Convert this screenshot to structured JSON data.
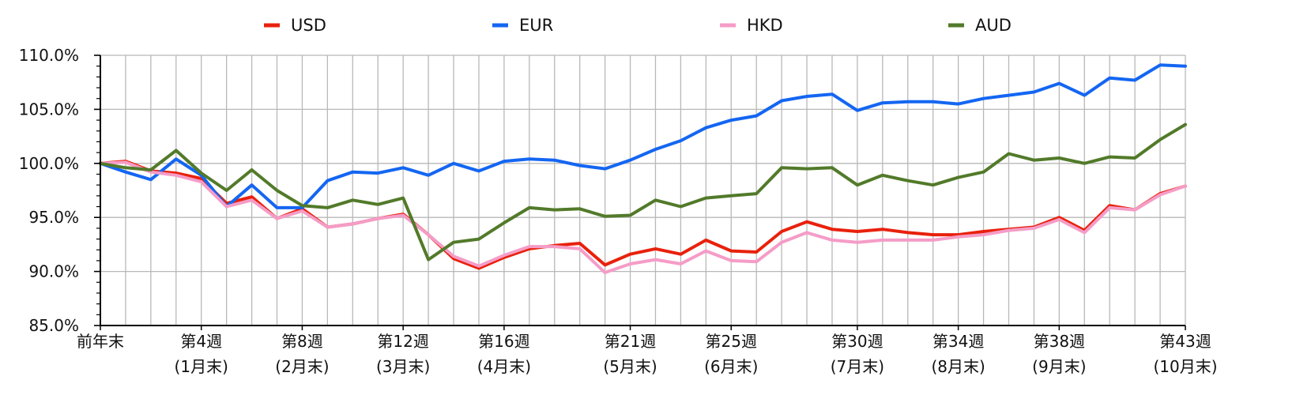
{
  "chart_data": {
    "type": "line",
    "title": "",
    "xlabel": "",
    "ylabel": "",
    "ylim": [
      85,
      110
    ],
    "y_ticks": [
      "110.0%",
      "105.0%",
      "100.0%",
      "95.0%",
      "90.0%",
      "85.0%"
    ],
    "y_tick_values": [
      110,
      105,
      100,
      95,
      90,
      85
    ],
    "grid": true,
    "legend_position": "top",
    "x_labels": [
      {
        "index": 0,
        "line1": "前年末",
        "line2": ""
      },
      {
        "index": 4,
        "line1": "第4週",
        "line2": "(1月末)"
      },
      {
        "index": 8,
        "line1": "第8週",
        "line2": "(2月末)"
      },
      {
        "index": 12,
        "line1": "第12週",
        "line2": "(3月末)"
      },
      {
        "index": 16,
        "line1": "第16週",
        "line2": "(4月末)"
      },
      {
        "index": 21,
        "line1": "第21週",
        "line2": "(5月末)"
      },
      {
        "index": 25,
        "line1": "第25週",
        "line2": "(6月末)"
      },
      {
        "index": 30,
        "line1": "第30週",
        "line2": "(7月末)"
      },
      {
        "index": 34,
        "line1": "第34週",
        "line2": "(8月末)"
      },
      {
        "index": 38,
        "line1": "第38週",
        "line2": "(9月末)"
      },
      {
        "index": 43,
        "line1": "第43週",
        "line2": "(10月末)"
      }
    ],
    "series": [
      {
        "name": "USD",
        "color": "#e8210c",
        "values": [
          100.0,
          100.2,
          99.3,
          99.1,
          98.6,
          96.3,
          96.9,
          94.9,
          95.8,
          94.1,
          94.4,
          94.9,
          95.3,
          93.4,
          91.2,
          90.3,
          91.3,
          92.1,
          92.4,
          92.6,
          90.6,
          91.6,
          92.1,
          91.6,
          92.9,
          91.9,
          91.8,
          93.7,
          94.6,
          93.9,
          93.7,
          93.9,
          93.6,
          93.4,
          93.4,
          93.7,
          93.9,
          94.1,
          95.0,
          93.8,
          96.1,
          95.7,
          97.2,
          97.9
        ]
      },
      {
        "name": "EUR",
        "color": "#1466f2",
        "values": [
          100.0,
          99.2,
          98.5,
          100.4,
          98.9,
          96.0,
          98.0,
          95.9,
          95.9,
          98.4,
          99.2,
          99.1,
          99.6,
          98.9,
          100.0,
          99.3,
          100.2,
          100.4,
          100.3,
          99.8,
          99.5,
          100.3,
          101.3,
          102.1,
          103.3,
          104.0,
          104.4,
          105.8,
          106.2,
          106.4,
          104.9,
          105.6,
          105.7,
          105.7,
          105.5,
          106.0,
          106.3,
          106.6,
          107.4,
          106.3,
          107.9,
          107.7,
          109.1,
          109.0
        ]
      },
      {
        "name": "HKD",
        "color": "#f59cc7",
        "values": [
          100.0,
          100.1,
          99.2,
          98.9,
          98.3,
          96.0,
          96.6,
          94.9,
          95.6,
          94.1,
          94.4,
          94.9,
          95.2,
          93.4,
          91.4,
          90.5,
          91.5,
          92.3,
          92.3,
          92.1,
          89.9,
          90.7,
          91.1,
          90.7,
          91.9,
          91.0,
          90.9,
          92.7,
          93.6,
          92.9,
          92.7,
          92.9,
          92.9,
          92.9,
          93.2,
          93.4,
          93.8,
          94.0,
          94.8,
          93.6,
          95.9,
          95.7,
          97.1,
          97.9
        ]
      },
      {
        "name": "AUD",
        "color": "#527a2a",
        "values": [
          100.0,
          99.6,
          99.4,
          101.2,
          99.1,
          97.5,
          99.4,
          97.5,
          96.1,
          95.9,
          96.6,
          96.2,
          96.8,
          91.1,
          92.7,
          93.0,
          94.5,
          95.9,
          95.7,
          95.8,
          95.1,
          95.2,
          96.6,
          96.0,
          96.8,
          97.0,
          97.2,
          99.6,
          99.5,
          99.6,
          98.0,
          98.9,
          98.4,
          98.0,
          98.7,
          99.2,
          100.9,
          100.3,
          100.5,
          100.0,
          100.6,
          100.5,
          102.2,
          103.6
        ]
      }
    ]
  }
}
